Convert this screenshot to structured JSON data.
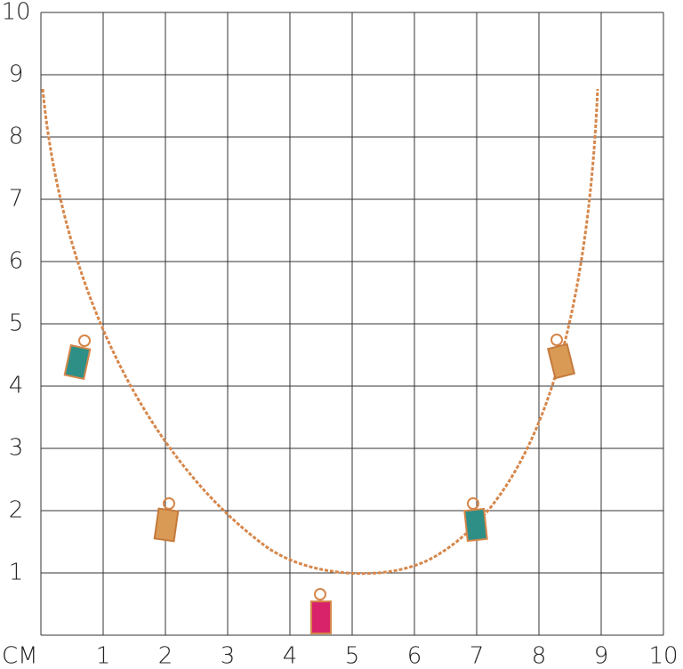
{
  "axis_unit": "СМ",
  "x_labels": [
    "1",
    "2",
    "3",
    "4",
    "5",
    "6",
    "7",
    "8",
    "9",
    "10"
  ],
  "y_labels": [
    "10",
    "9",
    "8",
    "7",
    "6",
    "5",
    "4",
    "3",
    "2",
    "1"
  ]
}
